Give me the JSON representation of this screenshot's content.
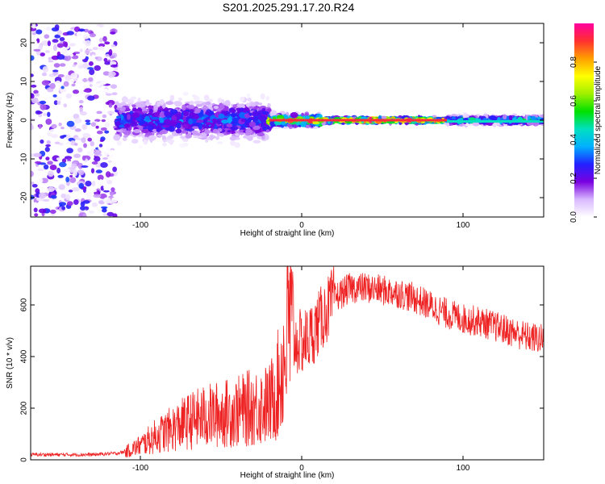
{
  "page": {
    "title": "S201.2025.291.17.20.R24"
  },
  "chart_data": [
    {
      "type": "heatmap",
      "name": "spectrogram",
      "title": "S201.2025.291.17.20.R24",
      "xlabel": "Height of straight line (km)",
      "ylabel": "Frequency (Hz)",
      "xlim": [
        -168,
        150
      ],
      "ylim": [
        -25,
        25
      ],
      "xticks": [
        -100,
        0,
        100
      ],
      "yticks": [
        -20,
        -10,
        0,
        10,
        20
      ],
      "colorbar": {
        "label": "Normalized spectral amplitude",
        "range": [
          0,
          1
        ],
        "ticks": [
          "0.0",
          "0.2",
          "0.4",
          "0.6",
          "0.8"
        ],
        "colors": [
          "#ffffff",
          "#d8b8ff",
          "#7a00e0",
          "#2222ff",
          "#00b0ff",
          "#00e0c0",
          "#00e000",
          "#a0f000",
          "#ffff00",
          "#ffa000",
          "#ff3030",
          "#ff00a0"
        ]
      },
      "regions": [
        {
          "x_start": -168,
          "x_end": -115,
          "freq_spread": 25,
          "peak_amplitude": 0.2,
          "description": "noise"
        },
        {
          "x_start": -115,
          "x_end": -20,
          "freq_spread": 5,
          "peak_amplitude": 0.35
        },
        {
          "x_start": -20,
          "x_end": 12,
          "freq_spread": 1.5,
          "peak_amplitude": 0.9
        },
        {
          "x_start": 12,
          "x_end": 90,
          "freq_spread": 0.5,
          "peak_amplitude": 0.95
        },
        {
          "x_start": 90,
          "x_end": 150,
          "freq_spread": 1.0,
          "peak_amplitude": 0.5
        }
      ]
    },
    {
      "type": "line",
      "name": "snr",
      "xlabel": "Height of straight line (km)",
      "ylabel": "SNR (10 * v/v)",
      "xlim": [
        -168,
        150
      ],
      "ylim": [
        0,
        750
      ],
      "xticks": [
        -100,
        0,
        100
      ],
      "yticks": [
        0,
        200,
        400,
        600
      ],
      "color": "#ee2222",
      "x": [
        -168,
        -150,
        -130,
        -115,
        -110,
        -100,
        -90,
        -80,
        -70,
        -60,
        -50,
        -40,
        -30,
        -20,
        -15,
        -10,
        -8,
        -5,
        0,
        5,
        10,
        20,
        30,
        40,
        50,
        60,
        70,
        80,
        90,
        100,
        110,
        120,
        130,
        140,
        150
      ],
      "y": [
        20,
        20,
        20,
        25,
        30,
        60,
        100,
        130,
        160,
        180,
        190,
        200,
        220,
        230,
        300,
        450,
        600,
        480,
        480,
        500,
        550,
        650,
        690,
        690,
        680,
        670,
        650,
        620,
        590,
        570,
        560,
        540,
        520,
        500,
        490
      ]
    }
  ]
}
